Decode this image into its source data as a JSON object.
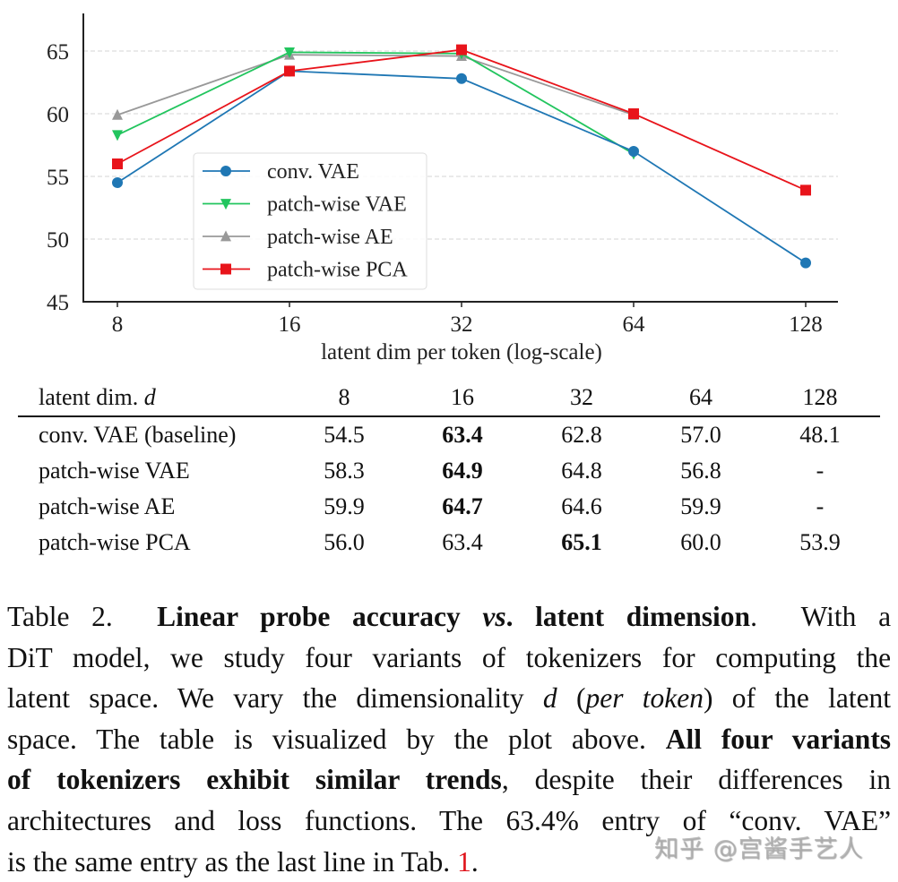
{
  "chart_data": {
    "type": "line",
    "title": "",
    "xlabel": "latent dim per token (log-scale)",
    "ylabel": "",
    "x": [
      8,
      16,
      32,
      64,
      128
    ],
    "x_scale": "log2",
    "xticks": [
      "8",
      "16",
      "32",
      "64",
      "128"
    ],
    "yticks": [
      45,
      50,
      55,
      60,
      65
    ],
    "ylim": [
      45,
      68
    ],
    "grid": "horizontal dashed",
    "legend": "center-left",
    "series": [
      {
        "name": "conv. VAE",
        "color": "#1f77b4",
        "marker": "circle",
        "values": [
          54.5,
          63.4,
          62.8,
          57.0,
          48.1
        ]
      },
      {
        "name": "patch-wise VAE",
        "color": "#22c55e",
        "marker": "triangle-down",
        "values": [
          58.3,
          64.9,
          64.8,
          56.8,
          null
        ]
      },
      {
        "name": "patch-wise AE",
        "color": "#999999",
        "marker": "triangle-up",
        "values": [
          59.9,
          64.7,
          64.6,
          59.9,
          null
        ]
      },
      {
        "name": "patch-wise PCA",
        "color": "#e8141b",
        "marker": "square",
        "values": [
          56.0,
          63.4,
          65.1,
          60.0,
          53.9
        ]
      }
    ]
  },
  "table": {
    "header": {
      "label": "latent dim. ",
      "var": "d",
      "cols": [
        "8",
        "16",
        "32",
        "64",
        "128"
      ]
    },
    "rows": [
      {
        "label": "conv. VAE (baseline)",
        "cells": [
          "54.5",
          "63.4",
          "62.8",
          "57.0",
          "48.1"
        ],
        "bold_index": 1
      },
      {
        "label": "patch-wise VAE",
        "cells": [
          "58.3",
          "64.9",
          "64.8",
          "56.8",
          "-"
        ],
        "bold_index": 1
      },
      {
        "label": "patch-wise AE",
        "cells": [
          "59.9",
          "64.7",
          "64.6",
          "59.9",
          "-"
        ],
        "bold_index": 1
      },
      {
        "label": "patch-wise PCA",
        "cells": [
          "56.0",
          "63.4",
          "65.1",
          "60.0",
          "53.9"
        ],
        "bold_index": 2
      }
    ]
  },
  "caption": {
    "lines": [
      [
        {
          "t": "Table 2.  "
        },
        {
          "t": "Linear probe accuracy ",
          "s": "bold"
        },
        {
          "t": "vs",
          "s": "bold it"
        },
        {
          "t": ". latent dimension",
          "s": "bold"
        },
        {
          "t": ".  With a"
        }
      ],
      [
        {
          "t": "DiT model, we study four variants of tokenizers for computing the"
        }
      ],
      [
        {
          "t": "latent space. We vary the dimensionality "
        },
        {
          "t": "d",
          "s": "it"
        },
        {
          "t": " ("
        },
        {
          "t": "per token",
          "s": "it"
        },
        {
          "t": ") of the latent"
        }
      ],
      [
        {
          "t": "space. The table is visualized by the plot above. "
        },
        {
          "t": "All four variants",
          "s": "bold"
        }
      ],
      [
        {
          "t": "of tokenizers exhibit similar trends",
          "s": "bold"
        },
        {
          "t": ", despite their differences in"
        }
      ],
      [
        {
          "t": "architectures and loss functions. The 63.4% entry of “conv. VAE”"
        }
      ],
      [
        {
          "t": "is the same entry as the last line in Tab. "
        },
        {
          "t": "1",
          "s": "red",
          "link": true
        },
        {
          "t": "."
        }
      ]
    ]
  },
  "watermark": "知乎 @宫酱手艺人"
}
